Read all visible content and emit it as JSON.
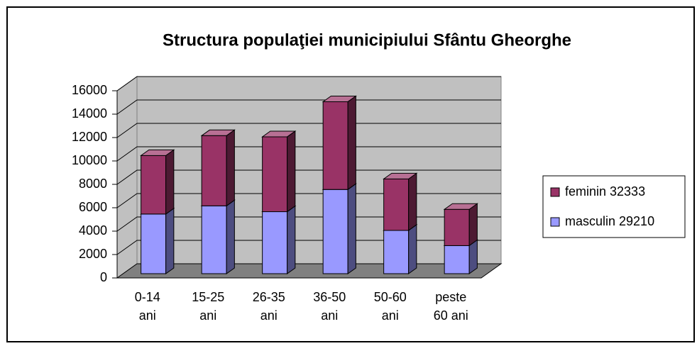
{
  "chart_data": {
    "type": "bar3d_stacked",
    "title": "Structura populaţiei municipiului Sfântu Gheorghe",
    "categories": [
      [
        "0-14",
        "ani"
      ],
      [
        "15-25",
        "ani"
      ],
      [
        "26-35",
        "ani"
      ],
      [
        "36-50",
        "ani"
      ],
      [
        "50-60",
        "ani"
      ],
      [
        "peste",
        "60 ani"
      ]
    ],
    "series": [
      {
        "name": "masculin 29210",
        "color": "#9999ff",
        "values": [
          5100,
          5800,
          5300,
          7200,
          3700,
          2400
        ]
      },
      {
        "name": "feminin 32333",
        "color": "#993366",
        "values": [
          5000,
          6000,
          6400,
          7500,
          4400,
          3100
        ]
      }
    ],
    "ylim": [
      0,
      16000
    ],
    "yticks": [
      0,
      2000,
      4000,
      6000,
      8000,
      10000,
      12000,
      14000,
      16000
    ],
    "grid": true,
    "legend": "right"
  }
}
